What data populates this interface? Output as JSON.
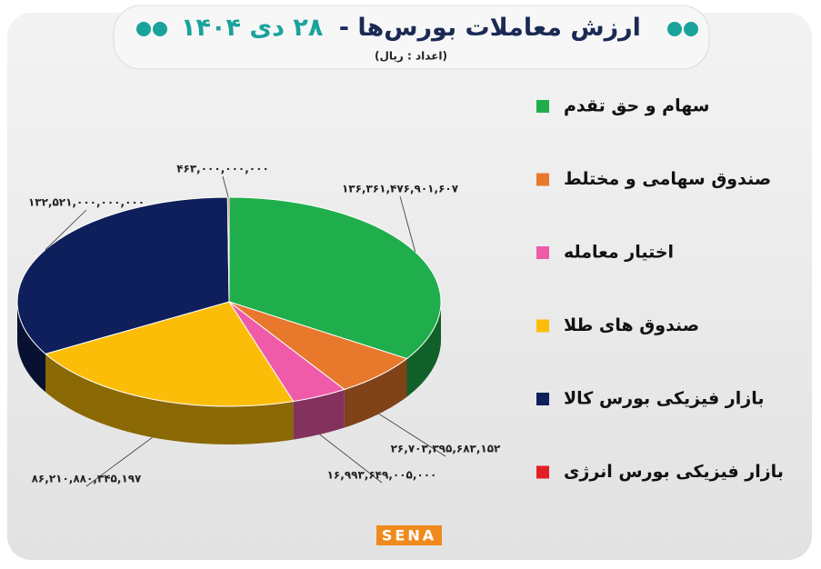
{
  "chart_data": {
    "type": "pie",
    "title": "ارزش معاملات بورس‌ها -",
    "date": "۲۸ دی ۱۴۰۴",
    "subtitle": "(اعداد : ریال)",
    "categories": [
      "سهام و حق تقدم",
      "صندوق سهامی و مختلط",
      "اختیار معامله",
      "صندوق های طلا",
      "بازار فیزیکی بورس کالا",
      "بازار فیزیکی بورس انرژی"
    ],
    "values": [
      136361476901607,
      26703395683152,
      16993649005000,
      86210880345197,
      132521000000000,
      463000000000
    ],
    "value_labels": [
      "۱۳۶,۳۶۱,۴۷۶,۹۰۱,۶۰۷",
      "۲۶,۷۰۳,۳۹۵,۶۸۳,۱۵۲",
      "۱۶,۹۹۳,۶۴۹,۰۰۵,۰۰۰",
      "۸۶,۲۱۰,۸۸۰,۳۴۵,۱۹۷",
      "۱۳۲,۵۲۱,۰۰۰,۰۰۰,۰۰۰",
      "۴۶۳,۰۰۰,۰۰۰,۰۰۰"
    ],
    "colors": [
      "#1fae4b",
      "#e8782c",
      "#ef5ba9",
      "#fbbd08",
      "#0e1f5b",
      "#e41e26"
    ]
  },
  "logo": "SENA"
}
